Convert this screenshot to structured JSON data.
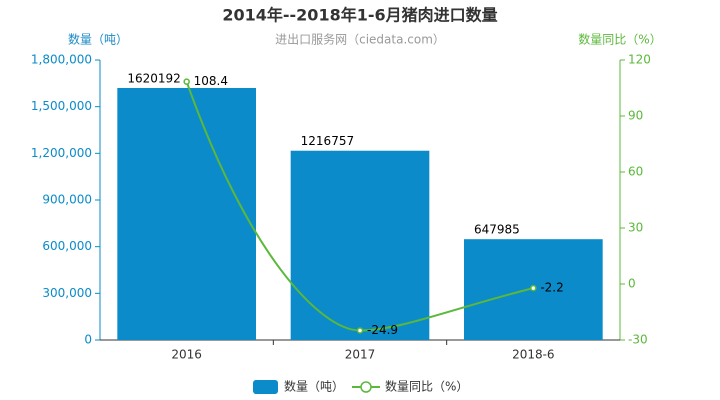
{
  "chart_data": {
    "type": "bar",
    "title": "2014年--2018年1-6月猪肉进口数量",
    "subtitle": "进出口服务网（ciedata.com）",
    "y_label": "数量（吨）",
    "y2_label": "数量同比（%）",
    "categories": [
      "2016",
      "2017",
      "2018-6"
    ],
    "series": [
      {
        "name": "数量（吨）",
        "type": "bar",
        "color": "#0b8bc9",
        "values": [
          1620192,
          1216757,
          647985
        ]
      },
      {
        "name": "数量同比（%）",
        "type": "line",
        "axis": "y2",
        "color": "#5bb83b",
        "values": [
          108.4,
          -24.9,
          -2.2
        ]
      }
    ],
    "ylim": [
      0,
      1800000
    ],
    "yticks": [
      0,
      {
        "value": 300000,
        "label": "300,000"
      },
      {
        "value": 600000,
        "label": "600,000"
      },
      {
        "value": 900000,
        "label": "900,000"
      },
      {
        "value": 1200000,
        "label": "1,200,000"
      },
      {
        "value": 1500000,
        "label": "1,500,000"
      },
      {
        "value": 1800000,
        "label": "1,800,000"
      }
    ],
    "y2lim": [
      -30,
      120
    ],
    "y2ticks": [
      -30,
      0,
      30,
      60,
      90,
      120
    ],
    "grid": false,
    "legend": "bottom"
  }
}
